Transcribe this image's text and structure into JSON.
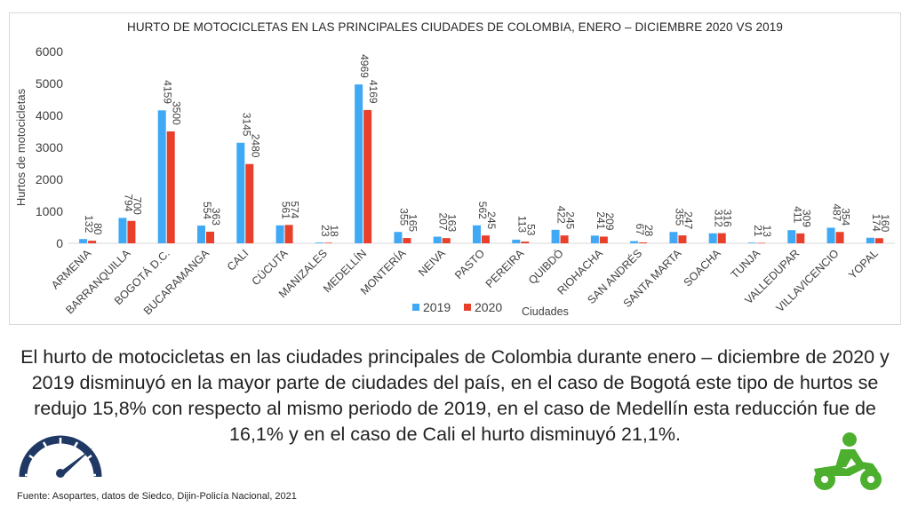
{
  "chart_data": {
    "type": "bar",
    "title": "HURTO DE MOTOCICLETAS EN LAS PRINCIPALES CIUDADES DE COLOMBIA, ENERO – DICIEMBRE 2020 VS 2019",
    "xlabel": "Ciudades",
    "ylabel": "Hurtos de motocicletas",
    "ylim": [
      0,
      6000
    ],
    "yticks": [
      "0",
      "1000",
      "2000",
      "3000",
      "4000",
      "5000",
      "6000"
    ],
    "legend_position": "bottom",
    "categories": [
      "ARMENIA",
      "BARRANQUILLA",
      "BOGOTÁ D.C.",
      "BUCARAMANGA",
      "CALI",
      "CÚCUTA",
      "MANIZALES",
      "MEDELLÍN",
      "MONTERÍA",
      "NEIVA",
      "PASTO",
      "PEREIRA",
      "QUIBDÓ",
      "RIOHACHA",
      "SAN ANDRÉS",
      "SANTA MARTA",
      "SOACHA",
      "TUNJA",
      "VALLEDUPAR",
      "VILLAVICENCIO",
      "YOPAL"
    ],
    "series": [
      {
        "name": "2019",
        "color": "#3fa9f5",
        "values": [
          132,
          794,
          4159,
          554,
          3145,
          561,
          23,
          4969,
          355,
          207,
          562,
          113,
          422,
          241,
          67,
          355,
          312,
          21,
          411,
          487,
          174
        ]
      },
      {
        "name": "2020",
        "color": "#e8402a",
        "values": [
          80,
          700,
          3500,
          363,
          2480,
          574,
          18,
          4169,
          165,
          163,
          245,
          53,
          245,
          209,
          28,
          247,
          316,
          13,
          309,
          354,
          160
        ]
      }
    ]
  },
  "summary": {
    "text": "El hurto de motocicletas en las ciudades principales de Colombia durante enero – diciembre de 2020 y 2019 disminuyó en la mayor parte de ciudades del país, en el caso de Bogotá este tipo de hurtos se redujo 15,8% con respecto al  mismo periodo de 2019, en el caso de Medellín esta reducción fue de 16,1% y en el caso de Cali el hurto disminuyó 21,1%."
  },
  "footer": {
    "source": "Fuente: Asopartes, datos de Siedco, Dijin-Policía Nacional, 2021"
  },
  "icons": {
    "speedometer": {
      "name": "speedometer-icon",
      "color": "#1f3864"
    },
    "motorcycle": {
      "name": "motorcycle-rider-icon",
      "color": "#4caf2e"
    }
  }
}
